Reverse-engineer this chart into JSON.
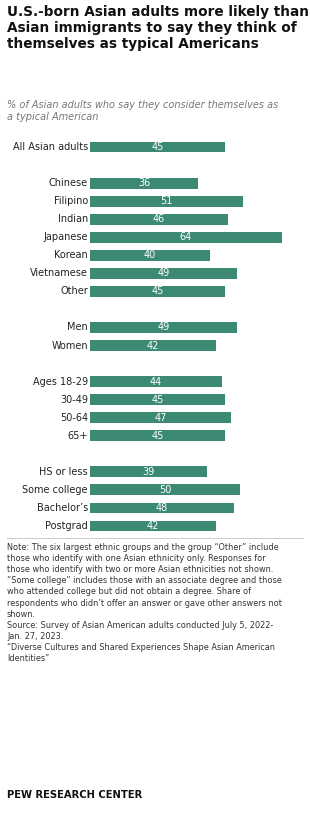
{
  "title": "U.S.-born Asian adults more likely than\nAsian immigrants to say they think of\nthemselves as typical Americans",
  "subtitle": "% of Asian adults who say they consider themselves as\na typical American",
  "bar_color": "#3d8a74",
  "text_color_bar": "#ffffff",
  "categories": [
    "All Asian adults",
    "",
    "Chinese",
    "Filipino",
    "Indian",
    "Japanese",
    "Korean",
    "Vietnamese",
    "Other",
    "",
    "Men",
    "Women",
    "",
    "Ages 18-29",
    "30-49",
    "50-64",
    "65+",
    "",
    "HS or less",
    "Some college",
    "Bachelor’s",
    "Postgrad"
  ],
  "values": [
    45,
    null,
    36,
    51,
    46,
    64,
    40,
    49,
    45,
    null,
    49,
    42,
    null,
    44,
    45,
    47,
    45,
    null,
    39,
    50,
    48,
    42
  ],
  "note_text": "Note: The six largest ethnic groups and the group “Other” include\nthose who identify with one Asian ethnicity only. Responses for\nthose who identify with two or more Asian ethnicities not shown.\n“Some college” includes those with an associate degree and those\nwho attended college but did not obtain a degree. Share of\nrespondents who didn’t offer an answer or gave other answers not\nshown.\nSource: Survey of Asian American adults conducted July 5, 2022-\nJan. 27, 2023.\n“Diverse Cultures and Shared Experiences Shape Asian American\nIdentities”",
  "source_label": "PEW RESEARCH CENTER",
  "xlim": [
    0,
    70
  ],
  "bar_height": 0.6,
  "figsize": [
    3.1,
    8.17
  ],
  "dpi": 100
}
